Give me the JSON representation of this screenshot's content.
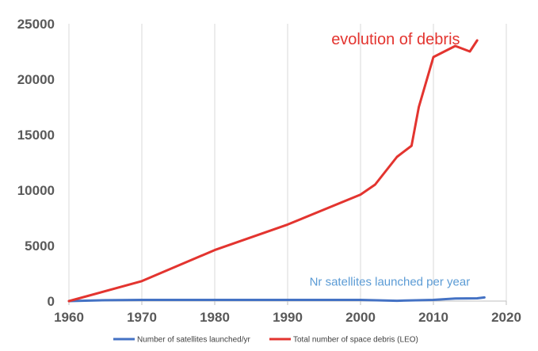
{
  "chart_data": {
    "type": "line",
    "xlim": [
      1960,
      2020
    ],
    "ylim": [
      0,
      25000
    ],
    "xticks": [
      "1960",
      "1970",
      "1980",
      "1990",
      "2000",
      "2010",
      "2020"
    ],
    "yticks": [
      "0",
      "5000",
      "10000",
      "15000",
      "20000",
      "25000"
    ],
    "grid": "vertical",
    "legend_placement": "bottom",
    "series": [
      {
        "name": "Number of satellites launched/yr",
        "color": "#4472c4",
        "x": [
          1960,
          1965,
          1970,
          1975,
          1980,
          1985,
          1990,
          1995,
          2000,
          2005,
          2010,
          2013,
          2016,
          2017
        ],
        "y": [
          0,
          80,
          110,
          110,
          110,
          110,
          110,
          110,
          110,
          30,
          110,
          230,
          250,
          330
        ]
      },
      {
        "name": "Total number of space debris (LEO)",
        "color": "#e3342f",
        "x": [
          1960,
          1970,
          1980,
          1990,
          2000,
          2002,
          2005,
          2007,
          2008,
          2010,
          2013,
          2015,
          2016
        ],
        "y": [
          0,
          1800,
          4600,
          6900,
          9600,
          10500,
          13000,
          14000,
          17500,
          22000,
          23000,
          22500,
          23500
        ]
      }
    ],
    "annotations": [
      {
        "text": "evolution of debris",
        "x": 1996,
        "y": 23150,
        "color": "#e3342f",
        "size": 20
      },
      {
        "text": "Nr satellites launched per year",
        "x": 1993,
        "y": 1380,
        "color": "#5b9bd5",
        "size": 15
      }
    ]
  }
}
